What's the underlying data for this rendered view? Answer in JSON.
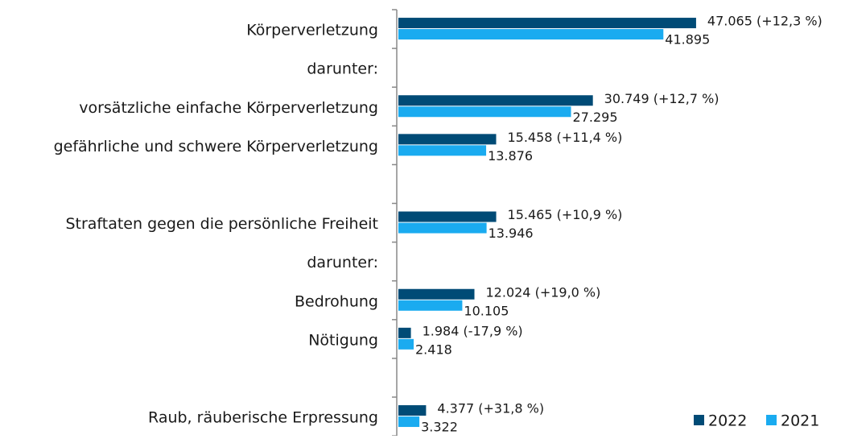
{
  "chart_data": {
    "type": "bar",
    "orientation": "horizontal",
    "categories": [
      "Körperverletzung",
      "darunter:",
      "vorsätzliche einfache Körperverletzung",
      "gefährliche und schwere Körperverletzung",
      null,
      "Straftaten gegen die persönliche Freiheit",
      "darunter:",
      "Bedrohung",
      "Nötigung",
      null,
      "Raub, räuberische Erpressung"
    ],
    "series": [
      {
        "name": "2022",
        "color": "#004b76",
        "values": [
          47065,
          null,
          30749,
          15458,
          null,
          15465,
          null,
          12024,
          1984,
          null,
          4377
        ],
        "value_labels": [
          "47.065 (+12,3 %)",
          null,
          "30.749 (+12,7 %)",
          "15.458 (+11,4 %)",
          null,
          "15.465 (+10,9 %)",
          null,
          "12.024 (+19,0 %)",
          "1.984 (-17,9 %)",
          null,
          "4.377 (+31,8 %)"
        ]
      },
      {
        "name": "2021",
        "color": "#1aabf0",
        "values": [
          41895,
          null,
          27295,
          13876,
          null,
          13946,
          null,
          10105,
          2418,
          null,
          3322
        ],
        "value_labels": [
          "41.895",
          null,
          "27.295",
          "13.876",
          null,
          "13.946",
          null,
          "10.105",
          "2.418",
          null,
          "3.322"
        ]
      }
    ],
    "legend": "bottom-right"
  }
}
